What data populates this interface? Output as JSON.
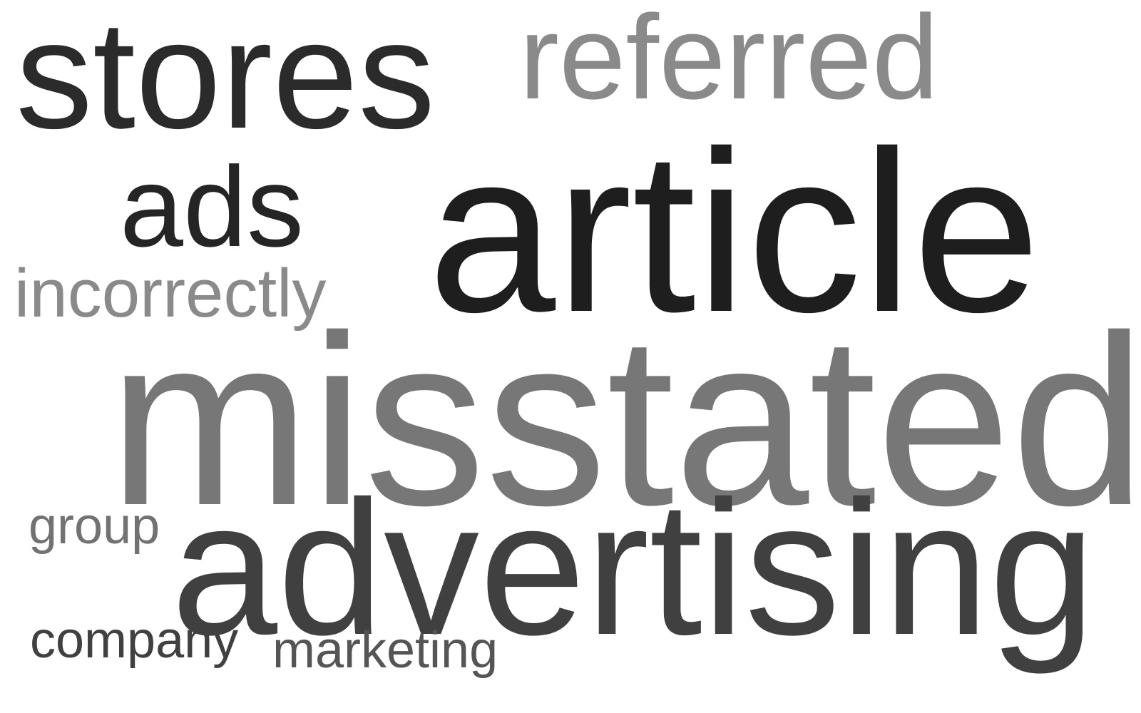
{
  "words": [
    {
      "id": "stores",
      "text": "stores",
      "color": "#2b2b2b"
    },
    {
      "id": "referred",
      "text": "referred",
      "color": "#8a8a8a"
    },
    {
      "id": "ads",
      "text": "ads",
      "color": "#252525"
    },
    {
      "id": "article",
      "text": "article",
      "color": "#1e1e1e"
    },
    {
      "id": "incorrectly",
      "text": "incorrectly",
      "color": "#8a8a8a"
    },
    {
      "id": "misstated",
      "text": "misstated",
      "color": "#777777"
    },
    {
      "id": "group",
      "text": "group",
      "color": "#727272"
    },
    {
      "id": "advertising",
      "text": "advertising",
      "color": "#404040"
    },
    {
      "id": "company",
      "text": "company",
      "color": "#404040"
    },
    {
      "id": "marketing",
      "text": "marketing",
      "color": "#555555"
    }
  ]
}
